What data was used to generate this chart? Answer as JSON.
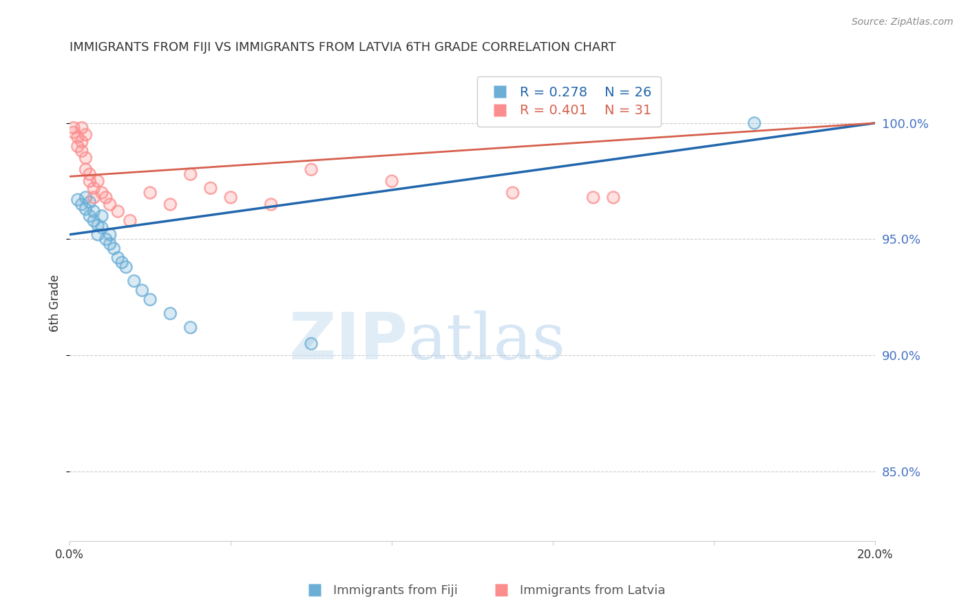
{
  "title": "IMMIGRANTS FROM FIJI VS IMMIGRANTS FROM LATVIA 6TH GRADE CORRELATION CHART",
  "source": "Source: ZipAtlas.com",
  "ylabel": "6th Grade",
  "yticks": [
    0.85,
    0.9,
    0.95,
    1.0
  ],
  "ytick_labels": [
    "85.0%",
    "90.0%",
    "95.0%",
    "100.0%"
  ],
  "xlim": [
    0.0,
    0.2
  ],
  "ylim": [
    0.82,
    1.025
  ],
  "fiji_color": "#6baed6",
  "latvia_color": "#fc8d8d",
  "fiji_line_color": "#2166ac",
  "latvia_line_color": "#d6604d",
  "fiji_R": 0.278,
  "fiji_N": 26,
  "latvia_R": 0.401,
  "latvia_N": 31,
  "fiji_x": [
    0.002,
    0.003,
    0.004,
    0.004,
    0.005,
    0.005,
    0.006,
    0.006,
    0.007,
    0.007,
    0.008,
    0.008,
    0.009,
    0.01,
    0.01,
    0.011,
    0.012,
    0.013,
    0.014,
    0.016,
    0.018,
    0.02,
    0.025,
    0.03,
    0.06,
    0.17
  ],
  "fiji_y": [
    0.967,
    0.965,
    0.968,
    0.963,
    0.96,
    0.966,
    0.962,
    0.958,
    0.956,
    0.952,
    0.96,
    0.955,
    0.95,
    0.948,
    0.952,
    0.946,
    0.942,
    0.94,
    0.938,
    0.932,
    0.928,
    0.924,
    0.918,
    0.912,
    0.905,
    1.0
  ],
  "latvia_x": [
    0.001,
    0.001,
    0.002,
    0.002,
    0.003,
    0.003,
    0.003,
    0.004,
    0.004,
    0.004,
    0.005,
    0.005,
    0.006,
    0.006,
    0.007,
    0.008,
    0.009,
    0.01,
    0.012,
    0.015,
    0.02,
    0.025,
    0.03,
    0.035,
    0.04,
    0.05,
    0.06,
    0.08,
    0.11,
    0.13,
    0.135
  ],
  "latvia_y": [
    0.998,
    0.996,
    0.994,
    0.99,
    0.998,
    0.992,
    0.988,
    0.985,
    0.98,
    0.995,
    0.978,
    0.975,
    0.972,
    0.968,
    0.975,
    0.97,
    0.968,
    0.965,
    0.962,
    0.958,
    0.97,
    0.965,
    0.978,
    0.972,
    0.968,
    0.965,
    0.98,
    0.975,
    0.97,
    0.968,
    0.968
  ],
  "fiji_line_x0": 0.0,
  "fiji_line_y0": 0.952,
  "fiji_line_x1": 0.2,
  "fiji_line_y1": 1.0,
  "latvia_line_x0": 0.0,
  "latvia_line_y0": 0.977,
  "latvia_line_x1": 0.2,
  "latvia_line_y1": 1.0,
  "watermark_zip": "ZIP",
  "watermark_atlas": "atlas",
  "background_color": "#ffffff",
  "grid_color": "#cccccc",
  "yaxis_label_color": "#4472c4",
  "title_color": "#333333"
}
